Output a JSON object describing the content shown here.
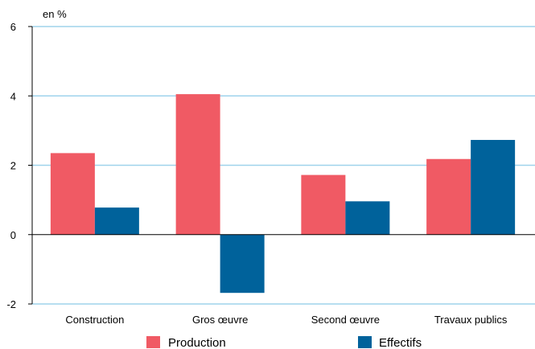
{
  "chart_data": {
    "type": "bar",
    "unit_label": "en %",
    "categories": [
      "Construction",
      "Gros œuvre",
      "Second œuvre",
      "Travaux publics"
    ],
    "series": [
      {
        "name": "Production",
        "color": "#f05a64",
        "values": [
          2.35,
          4.05,
          1.72,
          2.18
        ]
      },
      {
        "name": "Effectifs",
        "color": "#00629b",
        "values": [
          0.78,
          -1.68,
          0.96,
          2.73
        ]
      }
    ],
    "ylim": [
      -2,
      6
    ],
    "yticks": [
      6,
      4,
      2,
      0,
      -2
    ],
    "grid": true,
    "grid_color": "#9fd3ec",
    "legend_position": "bottom"
  }
}
